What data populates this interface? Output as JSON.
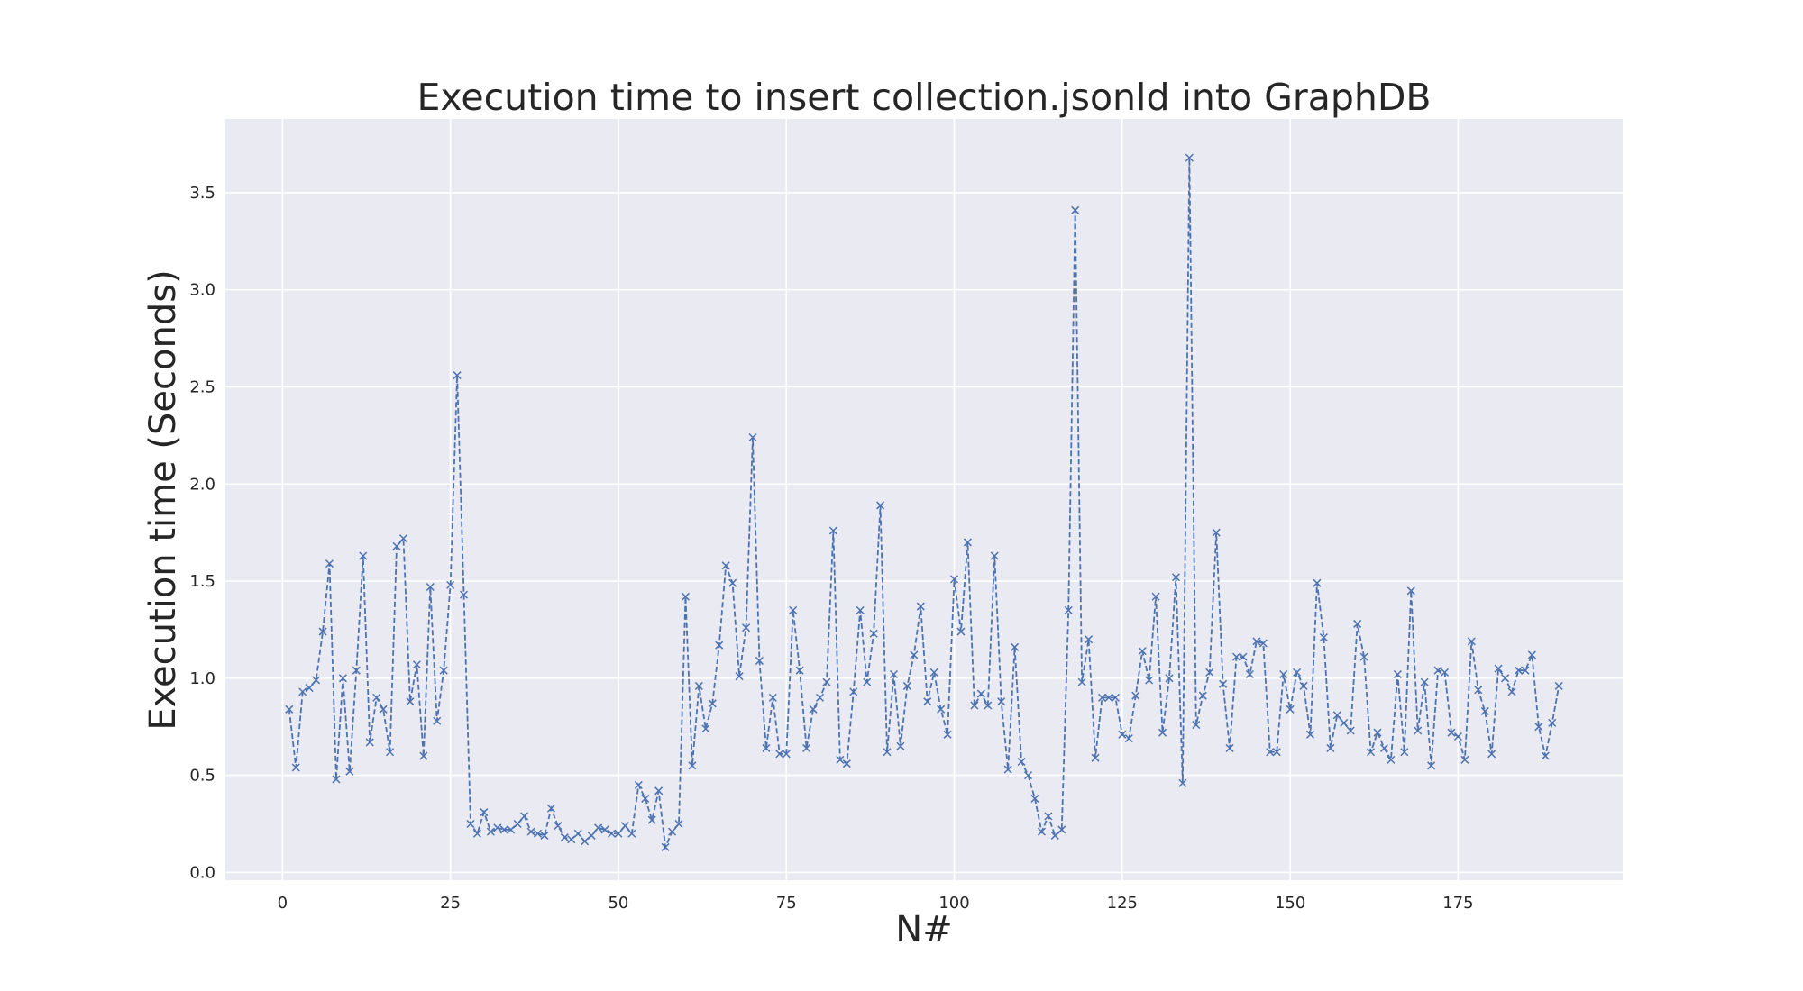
{
  "colors": {
    "plot_background": "#eaeaf2",
    "grid": "#ffffff",
    "series": "#4c72b0",
    "text": "#262626"
  },
  "chart_data": {
    "type": "line",
    "title": "Execution time to insert collection.jsonld into GraphDB",
    "xlabel": "N#",
    "ylabel": "Execution time (Seconds)",
    "xlim": [
      -8.5,
      199.5
    ],
    "ylim": [
      -0.04,
      3.88
    ],
    "xticks": [
      0,
      25,
      50,
      75,
      100,
      125,
      150,
      175
    ],
    "yticks": [
      0.0,
      0.5,
      1.0,
      1.5,
      2.0,
      2.5,
      3.0,
      3.5
    ],
    "xtick_labels": [
      "0",
      "25",
      "50",
      "75",
      "100",
      "125",
      "150",
      "175"
    ],
    "ytick_labels": [
      "0.0",
      "0.5",
      "1.0",
      "1.5",
      "2.0",
      "2.5",
      "3.0",
      "3.5"
    ],
    "grid": true,
    "line_style": "dashed",
    "marker": "x",
    "x": [
      1,
      2,
      3,
      4,
      5,
      6,
      7,
      8,
      9,
      10,
      11,
      12,
      13,
      14,
      15,
      16,
      17,
      18,
      19,
      20,
      21,
      22,
      23,
      24,
      25,
      26,
      27,
      28,
      29,
      30,
      31,
      32,
      33,
      34,
      35,
      36,
      37,
      38,
      39,
      40,
      41,
      42,
      43,
      44,
      45,
      46,
      47,
      48,
      49,
      50,
      51,
      52,
      53,
      54,
      55,
      56,
      57,
      58,
      59,
      60,
      61,
      62,
      63,
      64,
      65,
      66,
      67,
      68,
      69,
      70,
      71,
      72,
      73,
      74,
      75,
      76,
      77,
      78,
      79,
      80,
      81,
      82,
      83,
      84,
      85,
      86,
      87,
      88,
      89,
      90,
      91,
      92,
      93,
      94,
      95,
      96,
      97,
      98,
      99,
      100,
      101,
      102,
      103,
      104,
      105,
      106,
      107,
      108,
      109,
      110,
      111,
      112,
      113,
      114,
      115,
      116,
      117,
      118,
      119,
      120,
      121,
      122,
      123,
      124,
      125,
      126,
      127,
      128,
      129,
      130,
      131,
      132,
      133,
      134,
      135,
      136,
      137,
      138,
      139,
      140,
      141,
      142,
      143,
      144,
      145,
      146,
      147,
      148,
      149,
      150,
      151,
      152,
      153,
      154,
      155,
      156,
      157,
      158,
      159,
      160,
      161,
      162,
      163,
      164,
      165,
      166,
      167,
      168,
      169,
      170,
      171,
      172,
      173,
      174,
      175,
      176,
      177,
      178,
      179,
      180,
      181,
      182,
      183,
      184,
      185,
      186,
      187,
      188,
      189,
      190
    ],
    "series": [
      {
        "values": [
          0.84,
          0.54,
          0.93,
          0.95,
          0.99,
          1.24,
          1.59,
          0.48,
          1.0,
          0.52,
          1.04,
          1.63,
          0.67,
          0.9,
          0.84,
          0.62,
          1.68,
          1.72,
          0.88,
          1.07,
          0.6,
          1.47,
          0.78,
          1.04,
          1.48,
          2.56,
          1.43,
          0.25,
          0.2,
          0.31,
          0.21,
          0.23,
          0.22,
          0.22,
          0.25,
          0.29,
          0.21,
          0.2,
          0.19,
          0.33,
          0.24,
          0.18,
          0.17,
          0.2,
          0.16,
          0.19,
          0.23,
          0.22,
          0.2,
          0.2,
          0.24,
          0.2,
          0.45,
          0.38,
          0.27,
          0.42,
          0.13,
          0.21,
          0.25,
          1.42,
          0.55,
          0.96,
          0.74,
          0.87,
          1.17,
          1.58,
          1.49,
          1.01,
          1.26,
          2.24,
          1.09,
          0.64,
          0.9,
          0.61,
          0.61,
          1.35,
          1.04,
          0.64,
          0.84,
          0.9,
          0.98,
          1.76,
          0.58,
          0.56,
          0.93,
          1.35,
          0.98,
          1.23,
          1.89,
          0.62,
          1.02,
          0.65,
          0.96,
          1.12,
          1.37,
          0.88,
          1.03,
          0.84,
          0.71,
          1.51,
          1.24,
          1.7,
          0.86,
          0.92,
          0.86,
          1.63,
          0.88,
          0.53,
          1.16,
          0.57,
          0.5,
          0.38,
          0.21,
          0.29,
          0.19,
          0.22,
          1.35,
          3.41,
          0.98,
          1.2,
          0.59,
          0.9,
          0.9,
          0.9,
          0.71,
          0.69,
          0.91,
          1.14,
          0.99,
          1.42,
          0.72,
          1.0,
          1.52,
          0.46,
          3.68,
          0.76,
          0.91,
          1.03,
          1.75,
          0.97,
          0.64,
          1.11,
          1.11,
          1.02,
          1.19,
          1.18,
          0.62,
          0.62,
          1.02,
          0.84,
          1.03,
          0.96,
          0.71,
          1.49,
          1.21,
          0.64,
          0.81,
          0.77,
          0.73,
          1.28,
          1.11,
          0.62,
          0.72,
          0.64,
          0.58,
          1.02,
          0.62,
          1.45,
          0.73,
          0.98,
          0.55,
          1.04,
          1.03,
          0.72,
          0.7,
          0.58,
          1.19,
          0.94,
          0.83,
          0.61,
          1.05,
          1.0,
          0.93,
          1.04,
          1.04,
          1.12,
          0.75,
          0.6,
          0.77,
          0.96
        ]
      }
    ]
  }
}
